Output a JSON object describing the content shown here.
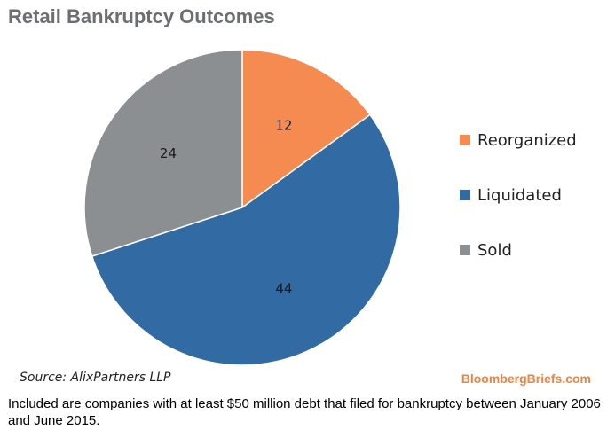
{
  "chart_data": {
    "type": "pie",
    "title": "Retail Bankruptcy Outcomes",
    "categories": [
      "Reorganized",
      "Liquidated",
      "Sold"
    ],
    "values": [
      12,
      44,
      24
    ],
    "colors": [
      "#f68b52",
      "#326ba4",
      "#8c8f91"
    ],
    "legend_position": "right",
    "data_labels": [
      "12",
      "44",
      "24"
    ]
  },
  "source": "Source: AlixPartners LLP",
  "brand": "BloombergBriefs.com",
  "caption": "Included are companies with at least $50 million debt that filed for bankruptcy between January 2006 and June 2015."
}
